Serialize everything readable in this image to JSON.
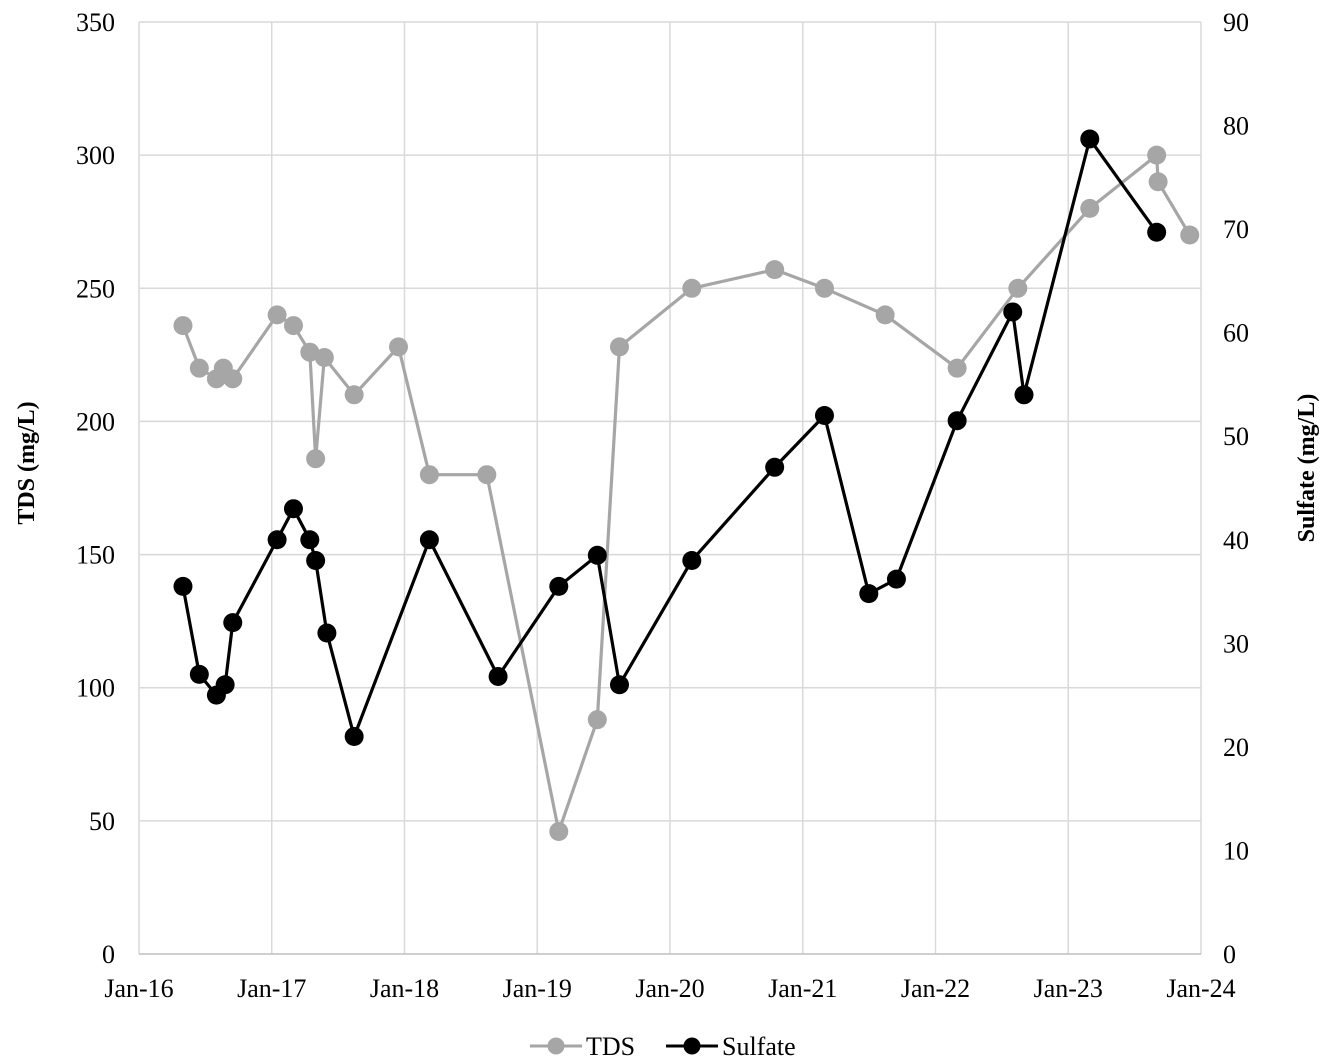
{
  "chart_data": {
    "type": "line",
    "title": "",
    "xlabel": "",
    "ylabel_left": "TDS (mg/L)",
    "ylabel_right": "Sulfate (mg/L)",
    "x_ticks": [
      "Jan-16",
      "Jan-17",
      "Jan-18",
      "Jan-19",
      "Jan-20",
      "Jan-21",
      "Jan-22",
      "Jan-23",
      "Jan-24"
    ],
    "y_left_ticks": [
      "0",
      "50",
      "100",
      "150",
      "200",
      "250",
      "300",
      "350"
    ],
    "y_right_ticks": [
      "0",
      "10",
      "20",
      "30",
      "40",
      "50",
      "60",
      "70",
      "80",
      "90"
    ],
    "y_left_lim": [
      0,
      350
    ],
    "y_right_lim": [
      0,
      90
    ],
    "x_range": [
      "2016-01-01",
      "2024-01-01"
    ],
    "grid": true,
    "legend_position": "bottom",
    "series": [
      {
        "name": "TDS",
        "axis": "left",
        "color": "#A6A6A6",
        "points": [
          [
            "2016-05-01",
            236
          ],
          [
            "2016-06-15",
            220
          ],
          [
            "2016-08-01",
            216
          ],
          [
            "2016-08-20",
            220
          ],
          [
            "2016-09-15",
            216
          ],
          [
            "2017-01-15",
            240
          ],
          [
            "2017-03-01",
            236
          ],
          [
            "2017-04-15",
            226
          ],
          [
            "2017-05-01",
            186
          ],
          [
            "2017-05-25",
            224
          ],
          [
            "2017-08-15",
            210
          ],
          [
            "2017-12-15",
            228
          ],
          [
            "2018-03-10",
            180
          ],
          [
            "2018-08-15",
            180
          ],
          [
            "2019-03-01",
            46
          ],
          [
            "2019-06-15",
            88
          ],
          [
            "2019-08-15",
            228
          ],
          [
            "2020-03-01",
            250
          ],
          [
            "2020-10-15",
            257
          ],
          [
            "2021-03-01",
            250
          ],
          [
            "2021-08-15",
            240
          ],
          [
            "2022-03-01",
            220
          ],
          [
            "2022-08-15",
            250
          ],
          [
            "2023-03-01",
            280
          ],
          [
            "2023-09-01",
            300
          ],
          [
            "2023-09-05",
            290
          ],
          [
            "2023-12-01",
            270
          ]
        ]
      },
      {
        "name": "Sulfate",
        "axis": "right",
        "color": "#000000",
        "points": [
          [
            "2016-05-01",
            35.5
          ],
          [
            "2016-06-15",
            27
          ],
          [
            "2016-08-01",
            25
          ],
          [
            "2016-08-25",
            26
          ],
          [
            "2016-09-15",
            32
          ],
          [
            "2017-01-15",
            40
          ],
          [
            "2017-03-01",
            43
          ],
          [
            "2017-04-15",
            40
          ],
          [
            "2017-05-01",
            38
          ],
          [
            "2017-06-01",
            31
          ],
          [
            "2017-08-15",
            21
          ],
          [
            "2018-03-10",
            40
          ],
          [
            "2018-09-15",
            26.8
          ],
          [
            "2019-03-01",
            35.5
          ],
          [
            "2019-06-15",
            38.5
          ],
          [
            "2019-08-15",
            26
          ],
          [
            "2020-03-01",
            38
          ],
          [
            "2020-10-15",
            47
          ],
          [
            "2021-03-01",
            52
          ],
          [
            "2021-07-01",
            34.8
          ],
          [
            "2021-09-15",
            36.2
          ],
          [
            "2022-03-01",
            51.5
          ],
          [
            "2022-08-01",
            62
          ],
          [
            "2022-09-01",
            54
          ],
          [
            "2023-03-01",
            78.7
          ],
          [
            "2023-09-01",
            69.7
          ]
        ]
      }
    ]
  }
}
